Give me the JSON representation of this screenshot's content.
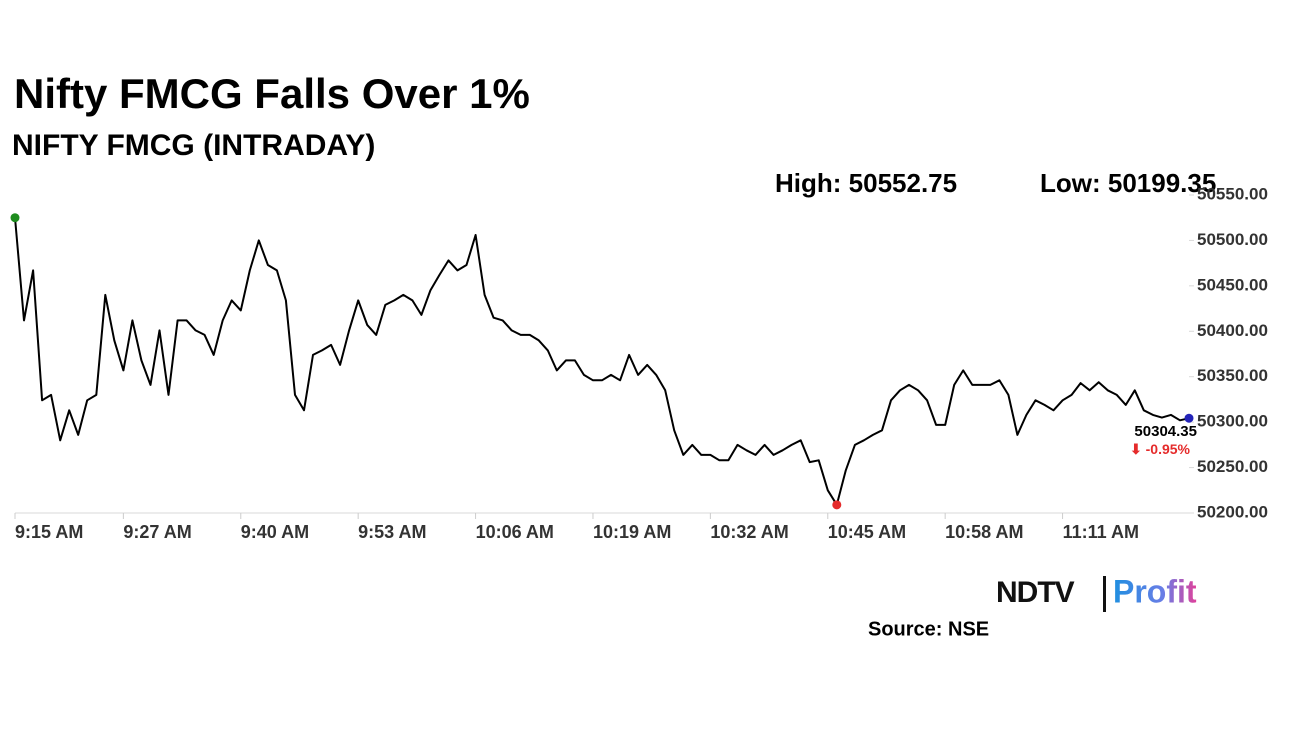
{
  "chart_data": {
    "type": "line",
    "title": "Nifty FMCG Falls Over 1%",
    "subtitle": "NIFTY FMCG (INTRADAY)",
    "high_label": "High: 50552.75",
    "low_label": "Low: 50199.35",
    "last_label": "50304.35",
    "change_label": "⬇ -0.95%",
    "source": "Source: NSE",
    "logo": {
      "left": "NDTV",
      "right": "Profit"
    },
    "color": "#000000",
    "marker_colors": {
      "start": "#1e8c1e",
      "low": "#e52b2b",
      "end": "#2323b8"
    },
    "change_color": "#e52b2b",
    "x": [
      "9:15 AM",
      "9:16 AM",
      "9:17 AM",
      "9:18 AM",
      "9:19 AM",
      "9:20 AM",
      "9:21 AM",
      "9:22 AM",
      "9:23 AM",
      "9:24 AM",
      "9:25 AM",
      "9:26 AM",
      "9:27 AM",
      "9:28 AM",
      "9:29 AM",
      "9:30 AM",
      "9:31 AM",
      "9:32 AM",
      "9:33 AM",
      "9:34 AM",
      "9:35 AM",
      "9:36 AM",
      "9:37 AM",
      "9:38 AM",
      "9:39 AM",
      "9:40 AM",
      "9:41 AM",
      "9:42 AM",
      "9:43 AM",
      "9:44 AM",
      "9:45 AM",
      "9:46 AM",
      "9:47 AM",
      "9:48 AM",
      "9:49 AM",
      "9:50 AM",
      "9:51 AM",
      "9:52 AM",
      "9:53 AM",
      "9:54 AM",
      "9:55 AM",
      "9:56 AM",
      "9:57 AM",
      "9:58 AM",
      "9:59 AM",
      "10:00 AM",
      "10:01 AM",
      "10:02 AM",
      "10:03 AM",
      "10:04 AM",
      "10:05 AM",
      "10:06 AM",
      "10:07 AM",
      "10:08 AM",
      "10:09 AM",
      "10:10 AM",
      "10:11 AM",
      "10:12 AM",
      "10:13 AM",
      "10:14 AM",
      "10:15 AM",
      "10:16 AM",
      "10:17 AM",
      "10:18 AM",
      "10:19 AM",
      "10:20 AM",
      "10:21 AM",
      "10:22 AM",
      "10:23 AM",
      "10:24 AM",
      "10:25 AM",
      "10:26 AM",
      "10:27 AM",
      "10:28 AM",
      "10:29 AM",
      "10:30 AM",
      "10:31 AM",
      "10:32 AM",
      "10:33 AM",
      "10:34 AM",
      "10:35 AM",
      "10:36 AM",
      "10:37 AM",
      "10:38 AM",
      "10:39 AM",
      "10:40 AM",
      "10:41 AM",
      "10:42 AM",
      "10:43 AM",
      "10:44 AM",
      "10:45 AM",
      "10:46 AM",
      "10:47 AM",
      "10:48 AM",
      "10:49 AM",
      "10:50 AM",
      "10:51 AM",
      "10:52 AM",
      "10:53 AM",
      "10:54 AM",
      "10:55 AM",
      "10:56 AM",
      "10:57 AM",
      "10:58 AM",
      "10:59 AM",
      "11:00 AM",
      "11:01 AM",
      "11:02 AM",
      "11:03 AM",
      "11:04 AM",
      "11:05 AM",
      "11:06 AM",
      "11:07 AM",
      "11:08 AM",
      "11:09 AM",
      "11:10 AM",
      "11:11 AM",
      "11:12 AM",
      "11:13 AM",
      "11:14 AM",
      "11:15 AM",
      "11:16 AM",
      "11:17 AM",
      "11:18 AM",
      "11:19 AM",
      "11:20 AM",
      "11:21 AM",
      "11:22 AM",
      "11:23 AM",
      "11:24 AM",
      "11:25 AM"
    ],
    "values": [
      50525,
      50412,
      50467,
      50324,
      50330,
      50280,
      50313,
      50286,
      50324,
      50330,
      50440,
      50390,
      50357,
      50412,
      50368,
      50341,
      50401,
      50330,
      50412,
      50412,
      50401,
      50396,
      50374,
      50412,
      50434,
      50423,
      50467,
      50500,
      50473,
      50467,
      50434,
      50330,
      50313,
      50374,
      50379,
      50385,
      50363,
      50401,
      50434,
      50407,
      50396,
      50429,
      50434,
      50440,
      50434,
      50418,
      50445,
      50462,
      50478,
      50467,
      50473,
      50506,
      50440,
      50415,
      50412,
      50401,
      50396,
      50396,
      50390,
      50379,
      50357,
      50368,
      50368,
      50352,
      50346,
      50346,
      50352,
      50346,
      50374,
      50352,
      50363,
      50352,
      50335,
      50291,
      50264,
      50275,
      50264,
      50264,
      50258,
      50258,
      50275,
      50269,
      50264,
      50275,
      50264,
      50269,
      50275,
      50280,
      50256,
      50258,
      50225,
      50209,
      50247,
      50275,
      50280,
      50286,
      50291,
      50324,
      50335,
      50341,
      50335,
      50324,
      50297,
      50297,
      50341,
      50357,
      50341,
      50341,
      50341,
      50346,
      50330,
      50286,
      50308,
      50324,
      50319,
      50313,
      50324,
      50330,
      50343,
      50335,
      50344,
      50335,
      50330,
      50319,
      50335,
      50313,
      50308,
      50305,
      50308,
      50302,
      50304.35
    ],
    "xticks": [
      "9:15 AM",
      "9:27 AM",
      "9:40 AM",
      "9:53 AM",
      "10:06 AM",
      "10:19 AM",
      "10:32 AM",
      "10:45 AM",
      "10:58 AM",
      "11:11 AM"
    ],
    "ylim": [
      50200,
      50550
    ],
    "yticks": [
      {
        "value": 50200,
        "label": "50200.00"
      },
      {
        "value": 50250,
        "label": "50250.00"
      },
      {
        "value": 50300,
        "label": "50300.00"
      },
      {
        "value": 50350,
        "label": "50350.00"
      },
      {
        "value": 50400,
        "label": "50400.00"
      },
      {
        "value": 50450,
        "label": "50450.00"
      },
      {
        "value": 50500,
        "label": "50500.00"
      },
      {
        "value": 50550,
        "label": "50550.00"
      }
    ]
  }
}
